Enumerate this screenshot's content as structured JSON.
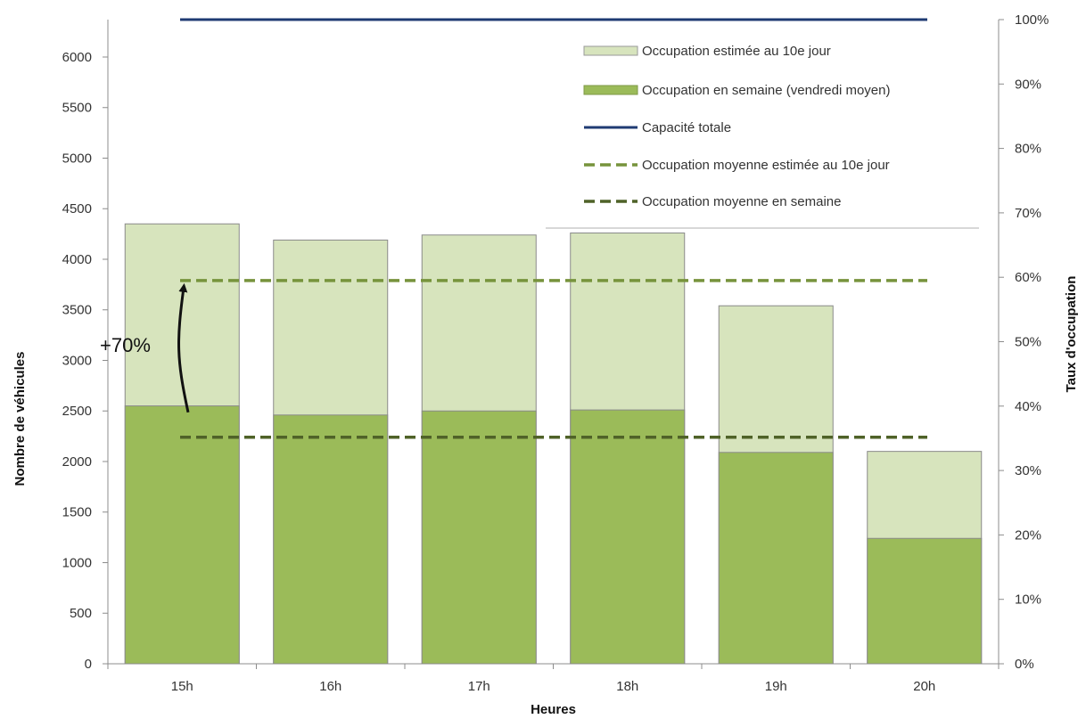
{
  "chart_data": {
    "type": "bar",
    "stacked": true,
    "categories": [
      "15h",
      "16h",
      "17h",
      "18h",
      "19h",
      "20h"
    ],
    "series": [
      {
        "name": "Occupation en semaine (vendredi moyen)",
        "values": [
          2550,
          2460,
          2500,
          2510,
          2090,
          1240
        ],
        "color": "#9bbb59"
      },
      {
        "name": "Occupation estimée au 10e jour",
        "values": [
          4350,
          4190,
          4240,
          4260,
          3540,
          2100
        ],
        "color": "#d7e4bd"
      }
    ],
    "lines": [
      {
        "name": "Capacité totale",
        "value": 6370,
        "color": "#1f3b73",
        "style": "solid"
      },
      {
        "name": "Occupation moyenne estimée au 10e jour",
        "value": 3790,
        "color": "#77933c",
        "style": "dashed"
      },
      {
        "name": "Occupation moyenne en semaine",
        "value": 2240,
        "color": "#4f6228",
        "style": "dashed"
      }
    ],
    "xlabel": "Heures",
    "ylabel": "Nombre de véhicules",
    "y2label": "Taux d'occupation",
    "ylim": [
      0,
      6370
    ],
    "yticks": [
      0,
      500,
      1000,
      1500,
      2000,
      2500,
      3000,
      3500,
      4000,
      4500,
      5000,
      5500,
      6000
    ],
    "y2lim": [
      0,
      100
    ],
    "y2ticks": [
      "0%",
      "10%",
      "20%",
      "30%",
      "40%",
      "50%",
      "60%",
      "70%",
      "80%",
      "90%",
      "100%"
    ],
    "annotation": {
      "text": "+70%",
      "from": 2240,
      "to": 3790,
      "category": "15h"
    },
    "legend_position": "top-right",
    "grid": false
  }
}
